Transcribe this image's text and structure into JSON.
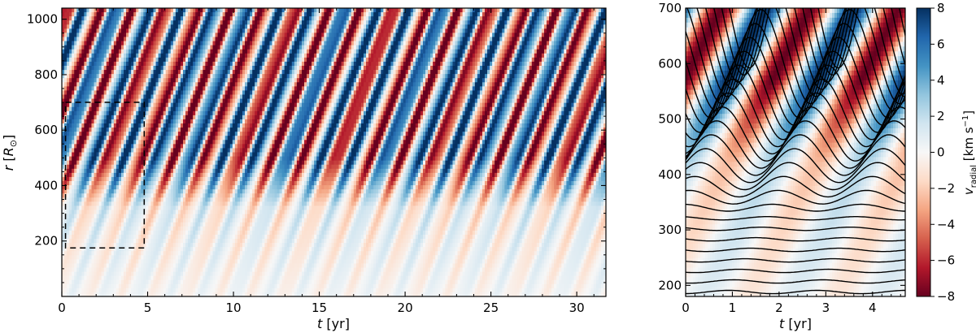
{
  "chart_data": [
    {
      "type": "heatmap",
      "panel": "left",
      "xlabel_var": "t",
      "xlabel_unit": "[yr]",
      "ylabel_var": "r",
      "ylabel_unit_var": "R",
      "ylabel_unit_sub": "⊙",
      "xlim": [
        0,
        31.7
      ],
      "ylim": [
        0,
        1040
      ],
      "xticks": [
        0,
        5,
        10,
        15,
        20,
        25,
        30
      ],
      "yticks": [
        200,
        400,
        600,
        800,
        1000
      ],
      "field": "radial velocity (km/s)",
      "color_range": [
        -8,
        8
      ],
      "wave_crossings_t_at_r600": [
        0.5,
        2.4,
        4.5,
        6.2,
        8.0,
        10.0,
        11.6,
        13.6,
        15.5,
        17.0,
        19.0,
        21.0,
        23.1,
        24.8,
        26.6,
        28.2,
        30.2
      ],
      "inset_box": {
        "t": [
          0.5,
          4.8
        ],
        "r": [
          175,
          700
        ]
      }
    },
    {
      "type": "heatmap",
      "panel": "right",
      "xlabel_var": "t",
      "xlabel_unit": "[yr]",
      "xlim": [
        0,
        4.7
      ],
      "ylim": [
        180,
        700
      ],
      "xticks": [
        0,
        1,
        2,
        3,
        4
      ],
      "yticks": [
        200,
        300,
        400,
        500,
        600,
        700
      ],
      "mass_shell_count": 29,
      "field": "radial velocity (km/s)",
      "color_range": [
        -8,
        8
      ]
    }
  ],
  "colorbar": {
    "ticks": [
      8,
      6,
      4,
      2,
      0,
      -2,
      -4,
      -6,
      -8
    ],
    "label_var": "v",
    "label_sub": "radial",
    "label_unit": "[km s",
    "label_exp": "−1",
    "label_close": "]",
    "colors": [
      "#67001f",
      "#b2182b",
      "#d6604d",
      "#f4a582",
      "#fddbc7",
      "#f7f7f7",
      "#d1e5f0",
      "#92c5de",
      "#4393c3",
      "#2166ac",
      "#053061"
    ]
  }
}
